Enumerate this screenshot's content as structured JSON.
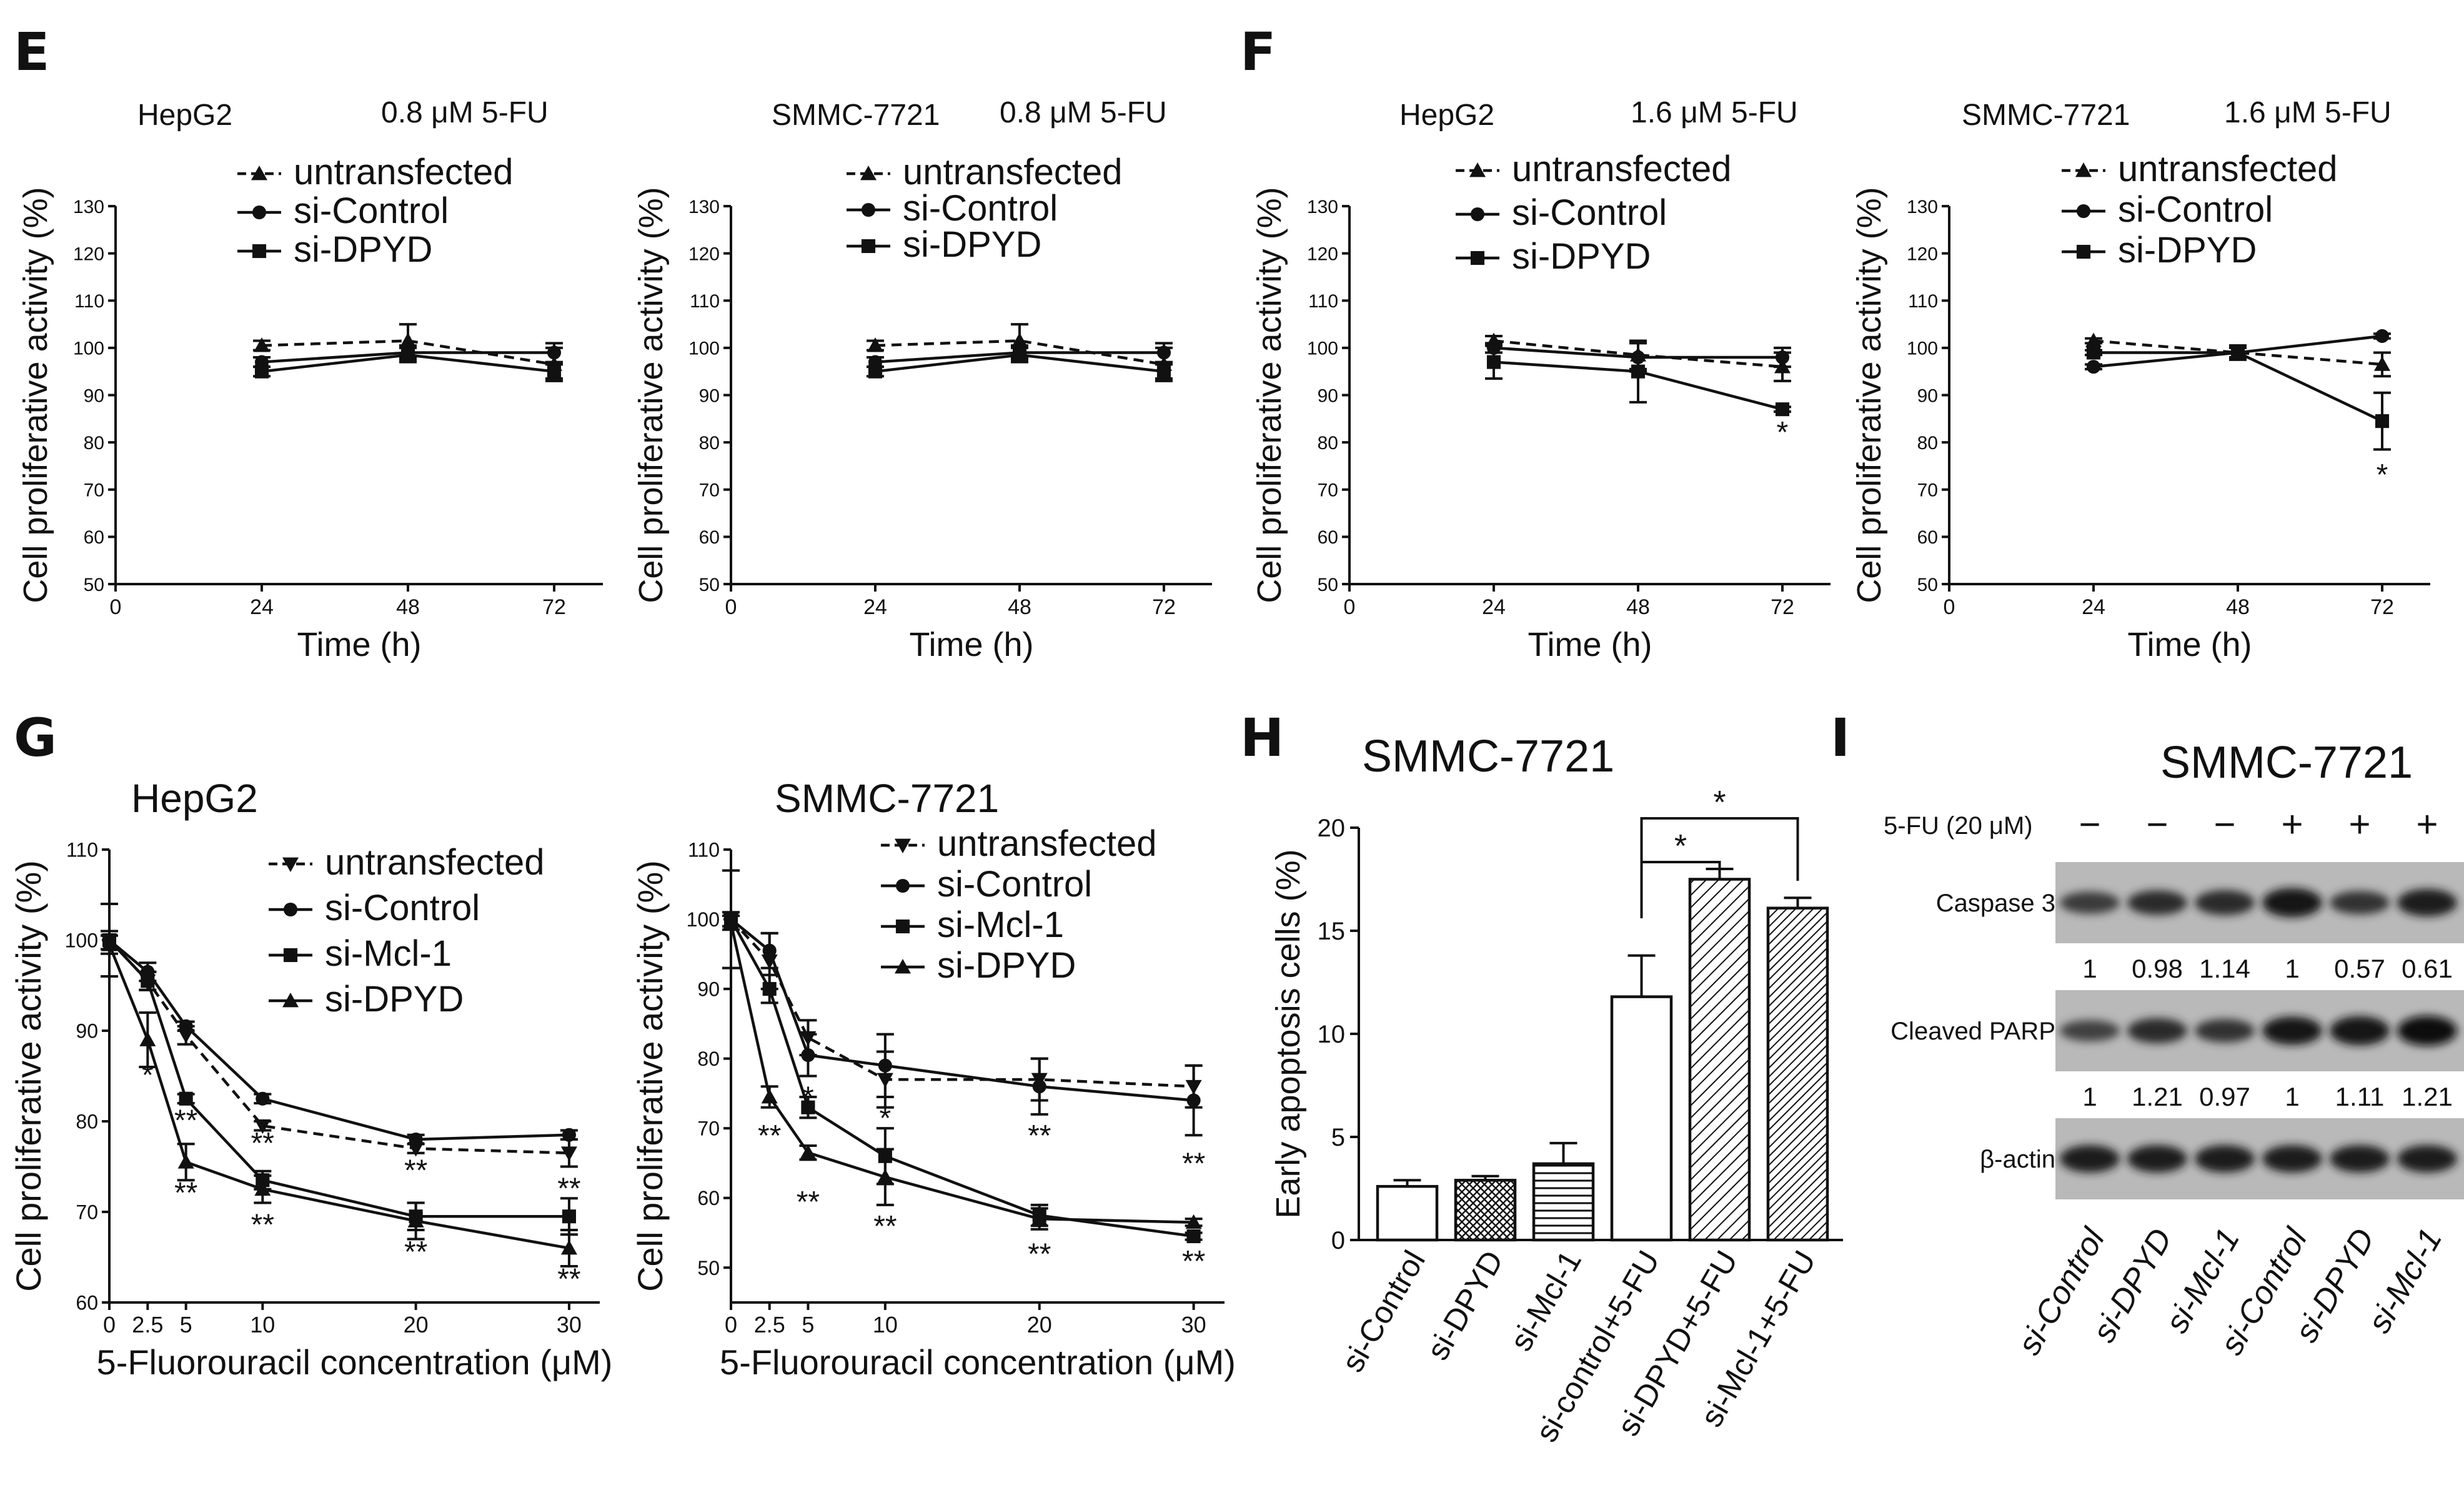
{
  "panels": {
    "E": "E",
    "F": "F",
    "G": "G",
    "H": "H",
    "I": "I"
  },
  "chart_data": [
    {
      "id": "E1",
      "panel": "E",
      "type": "line",
      "title": "HepG2",
      "subtitle": "0.8 μM 5-FU",
      "xlabel": "Time (h)",
      "ylabel": "Cell proliferative activity (%)",
      "xlim": [
        0,
        80
      ],
      "ylim": [
        50,
        130
      ],
      "xticks": [
        0,
        24,
        48,
        72
      ],
      "yticks": [
        50,
        60,
        70,
        80,
        90,
        100,
        110,
        120,
        130
      ],
      "x": [
        24,
        48,
        72
      ],
      "series": [
        {
          "name": "untransfected",
          "marker": "triangle",
          "dashed": true,
          "values": [
            100.5,
            101.5,
            96.5
          ],
          "err": [
            1,
            3.5,
            3.5
          ]
        },
        {
          "name": "si-Control",
          "marker": "circle",
          "dashed": false,
          "values": [
            97,
            99,
            99
          ],
          "err": [
            1,
            1.5,
            2
          ]
        },
        {
          "name": "si-DPYD",
          "marker": "square",
          "dashed": false,
          "values": [
            95,
            98.5,
            95
          ],
          "err": [
            1,
            1.5,
            1.5
          ]
        }
      ],
      "annotations": []
    },
    {
      "id": "E2",
      "panel": "E",
      "type": "line",
      "title": "SMMC-7721",
      "subtitle": "0.8 μM 5-FU",
      "xlabel": "Time (h)",
      "ylabel": "Cell proliferative activity (%)",
      "xlim": [
        0,
        80
      ],
      "ylim": [
        50,
        130
      ],
      "xticks": [
        0,
        24,
        48,
        72
      ],
      "yticks": [
        50,
        60,
        70,
        80,
        90,
        100,
        110,
        120,
        130
      ],
      "x": [
        24,
        48,
        72
      ],
      "series": [
        {
          "name": "untransfected",
          "marker": "triangle",
          "dashed": true,
          "values": [
            100.5,
            101.5,
            96.5
          ],
          "err": [
            1,
            3.5,
            3.5
          ]
        },
        {
          "name": "si-Control",
          "marker": "circle",
          "dashed": false,
          "values": [
            97,
            99,
            99
          ],
          "err": [
            1,
            1.5,
            2
          ]
        },
        {
          "name": "si-DPYD",
          "marker": "square",
          "dashed": false,
          "values": [
            95,
            98.5,
            95
          ],
          "err": [
            1,
            1.5,
            1.5
          ]
        }
      ],
      "annotations": []
    },
    {
      "id": "F1",
      "panel": "F",
      "type": "line",
      "title": "HepG2",
      "subtitle": "1.6 μM 5-FU",
      "xlabel": "Time (h)",
      "ylabel": "Cell proliferative activity (%)",
      "xlim": [
        0,
        80
      ],
      "ylim": [
        50,
        130
      ],
      "xticks": [
        0,
        24,
        48,
        72
      ],
      "yticks": [
        50,
        60,
        70,
        80,
        90,
        100,
        110,
        120,
        130
      ],
      "x": [
        24,
        48,
        72
      ],
      "series": [
        {
          "name": "untransfected",
          "marker": "triangle",
          "dashed": true,
          "values": [
            101.5,
            98.5,
            96
          ],
          "err": [
            1,
            3,
            3
          ]
        },
        {
          "name": "si-Control",
          "marker": "circle",
          "dashed": false,
          "values": [
            100,
            98,
            98
          ],
          "err": [
            1,
            3,
            2
          ]
        },
        {
          "name": "si-DPYD",
          "marker": "square",
          "dashed": false,
          "values": [
            97,
            95,
            87
          ],
          "err": [
            3.5,
            6.5,
            0.5
          ]
        }
      ],
      "annotations": [
        {
          "x": 72,
          "y": 80,
          "text": "*"
        }
      ]
    },
    {
      "id": "F2",
      "panel": "F",
      "type": "line",
      "title": "SMMC-7721",
      "subtitle": "1.6 μM 5-FU",
      "xlabel": "Time (h)",
      "ylabel": "Cell proliferative activity (%)",
      "xlim": [
        0,
        80
      ],
      "ylim": [
        50,
        130
      ],
      "xticks": [
        0,
        24,
        48,
        72
      ],
      "yticks": [
        50,
        60,
        70,
        80,
        90,
        100,
        110,
        120,
        130
      ],
      "x": [
        24,
        48,
        72
      ],
      "series": [
        {
          "name": "untransfected",
          "marker": "triangle",
          "dashed": true,
          "values": [
            101.5,
            99,
            96.5
          ],
          "err": [
            0.5,
            1.5,
            2.5
          ]
        },
        {
          "name": "si-Control",
          "marker": "circle",
          "dashed": false,
          "values": [
            96,
            99,
            102.5
          ],
          "err": [
            0.5,
            1,
            0.5
          ]
        },
        {
          "name": "si-DPYD",
          "marker": "square",
          "dashed": false,
          "values": [
            99,
            99,
            84.5
          ],
          "err": [
            0.5,
            1.5,
            6
          ]
        }
      ],
      "annotations": [
        {
          "x": 72,
          "y": 71,
          "text": "*"
        }
      ]
    },
    {
      "id": "G1",
      "panel": "G",
      "type": "line",
      "title": "HepG2",
      "subtitle": "",
      "xlabel": "5-Fluorouracil concentration (μM)",
      "ylabel": "Cell proliferative activity (%)",
      "xlim": [
        0,
        32
      ],
      "ylim": [
        60,
        110
      ],
      "xticks": [
        0,
        2.5,
        5,
        10,
        20,
        30
      ],
      "xticklabels": [
        "0",
        "2.5",
        "5",
        "10",
        "20",
        "30"
      ],
      "yticks": [
        60,
        70,
        80,
        90,
        100,
        110
      ],
      "x": [
        0,
        2.5,
        5,
        10,
        20,
        30
      ],
      "series": [
        {
          "name": "untransfected",
          "marker": "triangle-down",
          "dashed": true,
          "values": [
            100,
            95.5,
            89.5,
            79.5,
            77,
            76.5
          ],
          "err": [
            4,
            1,
            1,
            0.5,
            0.5,
            1.5
          ]
        },
        {
          "name": "si-Control",
          "marker": "circle",
          "dashed": false,
          "values": [
            100,
            96.5,
            90.5,
            82.5,
            78,
            78.5
          ],
          "err": [
            1,
            1,
            0.5,
            0.5,
            0.5,
            0.5
          ]
        },
        {
          "name": "si-Mcl-1",
          "marker": "square",
          "dashed": false,
          "values": [
            100,
            95.5,
            82.5,
            73.5,
            69.5,
            69.5
          ],
          "err": [
            1,
            1,
            0.5,
            1,
            1.5,
            2
          ]
        },
        {
          "name": "si-DPYD",
          "marker": "triangle",
          "dashed": false,
          "values": [
            99.5,
            89,
            75.5,
            72.5,
            69,
            66
          ],
          "err": [
            1,
            3,
            2,
            1.5,
            2,
            2
          ]
        }
      ],
      "annotations": [
        {
          "x": 2.5,
          "y": 84,
          "text": "*"
        },
        {
          "x": 5,
          "y": 79,
          "text": "**"
        },
        {
          "x": 5,
          "y": 71,
          "text": "**"
        },
        {
          "x": 10,
          "y": 76.5,
          "text": "**"
        },
        {
          "x": 10,
          "y": 67.5,
          "text": "**"
        },
        {
          "x": 20,
          "y": 73.5,
          "text": "**"
        },
        {
          "x": 20,
          "y": 64.5,
          "text": "**"
        },
        {
          "x": 30,
          "y": 71.5,
          "text": "**"
        },
        {
          "x": 30,
          "y": 61.5,
          "text": "**"
        }
      ]
    },
    {
      "id": "G2",
      "panel": "G",
      "type": "line",
      "title": "SMMC-7721",
      "subtitle": "",
      "xlabel": "5-Fluorouracil concentration (μM)",
      "ylabel": "Cell proliferative activity (%)",
      "xlim": [
        0,
        32
      ],
      "ylim": [
        45,
        110
      ],
      "xticks": [
        0,
        2.5,
        5,
        10,
        20,
        30
      ],
      "xticklabels": [
        "0",
        "2.5",
        "5",
        "10",
        "20",
        "30"
      ],
      "yticks": [
        50,
        60,
        70,
        80,
        90,
        100,
        110
      ],
      "x": [
        0,
        2.5,
        5,
        10,
        20,
        30
      ],
      "series": [
        {
          "name": "untransfected",
          "marker": "triangle-down",
          "dashed": true,
          "values": [
            100,
            94,
            83,
            77,
            77,
            76
          ],
          "err": [
            7,
            4,
            2.5,
            4,
            3,
            3
          ]
        },
        {
          "name": "si-Control",
          "marker": "circle",
          "dashed": false,
          "values": [
            100,
            95.5,
            80.5,
            79,
            76,
            74
          ],
          "err": [
            1,
            2.5,
            3,
            4.5,
            4,
            5
          ]
        },
        {
          "name": "si-Mcl-1",
          "marker": "square",
          "dashed": false,
          "values": [
            100,
            90,
            73,
            66,
            57.5,
            54.5
          ],
          "err": [
            1,
            2,
            1.5,
            4,
            1.5,
            0.5
          ]
        },
        {
          "name": "si-DPYD",
          "marker": "triangle",
          "dashed": false,
          "values": [
            99.5,
            74.5,
            66.5,
            63,
            57,
            56.5
          ],
          "err": [
            1,
            1.5,
            1,
            4,
            1.5,
            0.5
          ]
        }
      ],
      "annotations": [
        {
          "x": 5,
          "y": 73,
          "text": "*"
        },
        {
          "x": 10,
          "y": 70,
          "text": "*"
        },
        {
          "x": 2.5,
          "y": 67.5,
          "text": "**"
        },
        {
          "x": 20,
          "y": 67.5,
          "text": "**"
        },
        {
          "x": 30,
          "y": 63.5,
          "text": "**"
        },
        {
          "x": 5,
          "y": 58,
          "text": "**"
        },
        {
          "x": 10,
          "y": 54.5,
          "text": "**"
        },
        {
          "x": 20,
          "y": 50.5,
          "text": "**"
        },
        {
          "x": 30,
          "y": 49.5,
          "text": "**"
        }
      ]
    },
    {
      "id": "H",
      "panel": "H",
      "type": "bar",
      "title": "SMMC-7721",
      "xlabel": "",
      "ylabel": "Early apoptosis cells (%)",
      "ylim": [
        0,
        20
      ],
      "yticks": [
        0,
        5,
        10,
        15,
        20
      ],
      "categories": [
        "si-Control",
        "si-DPYD",
        "si-Mcl-1",
        "si-control+5-FU",
        "si-DPYD+5-FU",
        "si-Mcl-1+5-FU"
      ],
      "values": [
        2.6,
        2.9,
        3.7,
        11.8,
        17.5,
        16.1
      ],
      "err": [
        0.3,
        0.2,
        1.0,
        2.0,
        0.5,
        0.5
      ],
      "fills": [
        "white",
        "crosshatch",
        "horizontal",
        "white",
        "diagonal",
        "diagonal-dense"
      ],
      "significance": [
        {
          "from": 3,
          "to": 4,
          "text": "*"
        },
        {
          "from": 3,
          "to": 5,
          "text": "*"
        }
      ]
    }
  ],
  "western_blot": {
    "title": "SMMC-7721",
    "treatment_label": "5-FU (20 μM)",
    "treatment": [
      "−",
      "−",
      "−",
      "+",
      "+",
      "+"
    ],
    "bands": [
      {
        "name": "Caspase 3",
        "intensities": [
          0.55,
          0.7,
          0.72,
          0.95,
          0.62,
          0.85
        ]
      },
      {
        "name": "Cleaved PARP",
        "intensities": [
          0.5,
          0.72,
          0.62,
          0.9,
          0.95,
          1.0
        ]
      },
      {
        "name": "β-actin",
        "intensities": [
          0.85,
          0.85,
          0.85,
          0.85,
          0.85,
          0.85
        ]
      }
    ],
    "quant_rows": [
      [
        "1",
        "0.98",
        "1.14",
        "1",
        "0.57",
        "0.61"
      ],
      [
        "1",
        "1.21",
        "0.97",
        "1",
        "1.11",
        "1.21"
      ]
    ],
    "lanes": [
      "si-Control",
      "si-DPYD",
      "si-Mcl-1",
      "si-Control",
      "si-DPYD",
      "si-Mcl-1"
    ]
  }
}
